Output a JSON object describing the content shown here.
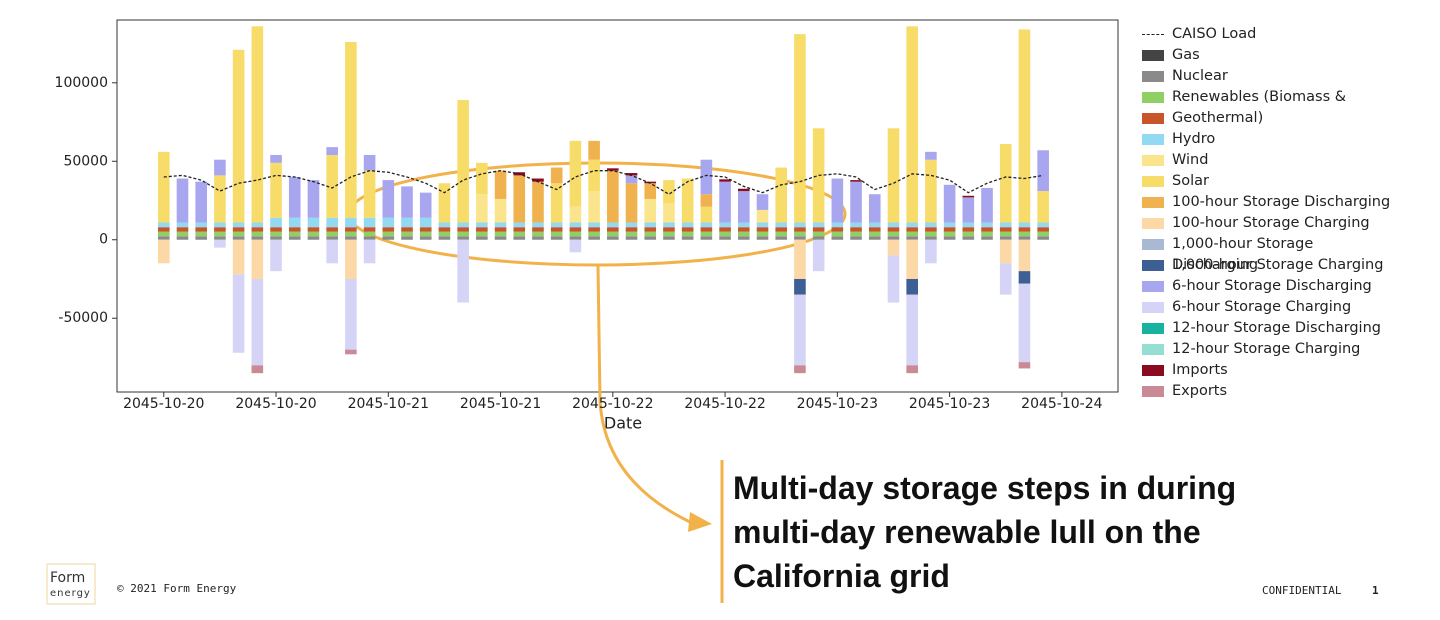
{
  "chart_data": {
    "type": "stacked-bar",
    "x_label": "Date",
    "legend": "right",
    "xlim": [
      -5,
      102
    ],
    "ylim": [
      -97000,
      140000
    ],
    "xticks": [
      {
        "value": 0,
        "label": "2045-10-20"
      },
      {
        "value": 12,
        "label": "2045-10-20"
      },
      {
        "value": 24,
        "label": "2045-10-21"
      },
      {
        "value": 36,
        "label": "2045-10-21"
      },
      {
        "value": 48,
        "label": "2045-10-22"
      },
      {
        "value": 60,
        "label": "2045-10-22"
      },
      {
        "value": 72,
        "label": "2045-10-23"
      },
      {
        "value": 84,
        "label": "2045-10-23"
      },
      {
        "value": 96,
        "label": "2045-10-24"
      }
    ],
    "yticks": [
      -50000,
      0,
      50000,
      100000
    ],
    "x": [
      0,
      2,
      4,
      6,
      8,
      10,
      12,
      14,
      16,
      18,
      20,
      22,
      24,
      26,
      28,
      30,
      32,
      34,
      36,
      38,
      40,
      42,
      44,
      46,
      48,
      50,
      52,
      54,
      56,
      58,
      60,
      62,
      64,
      66,
      68,
      70,
      72,
      74,
      76,
      78,
      80,
      82,
      84,
      86,
      88,
      90,
      92,
      94
    ],
    "load": {
      "name": "CAISO Load",
      "color": "#222222",
      "values": [
        40000,
        41000,
        38000,
        31000,
        36000,
        38000,
        41000,
        40000,
        37000,
        33000,
        40000,
        44000,
        43000,
        40000,
        36000,
        30000,
        38000,
        42000,
        44000,
        42000,
        37000,
        32000,
        40000,
        44000,
        44000,
        41000,
        36000,
        29000,
        37000,
        41000,
        40000,
        34000,
        30000,
        35000,
        37000,
        41000,
        42000,
        40000,
        32000,
        36000,
        42000,
        41000,
        38000,
        30000,
        36000,
        40000,
        39000,
        41000
      ]
    },
    "series": [
      {
        "name": "Gas",
        "color": "#444444",
        "values": [
          0,
          0,
          0,
          0,
          0,
          0,
          0,
          0,
          0,
          0,
          0,
          0,
          0,
          0,
          0,
          0,
          0,
          0,
          0,
          0,
          0,
          0,
          0,
          0,
          0,
          0,
          0,
          0,
          0,
          0,
          0,
          0,
          0,
          0,
          0,
          0,
          0,
          0,
          0,
          0,
          0,
          0,
          0,
          0,
          0,
          0,
          0,
          0
        ]
      },
      {
        "name": "Nuclear",
        "color": "#8a8a8a",
        "values": [
          2200,
          2200,
          2200,
          2200,
          2200,
          2200,
          2200,
          2200,
          2200,
          2200,
          2200,
          2200,
          2200,
          2200,
          2200,
          2200,
          2200,
          2200,
          2200,
          2200,
          2200,
          2200,
          2200,
          2200,
          2200,
          2200,
          2200,
          2200,
          2200,
          2200,
          2200,
          2200,
          2200,
          2200,
          2200,
          2200,
          2200,
          2200,
          2200,
          2200,
          2200,
          2200,
          2200,
          2200,
          2200,
          2200,
          2200,
          2200
        ]
      },
      {
        "name": "Renewables (Biomass & Geothermal)",
        "color": "#8fcf63",
        "values": [
          3000,
          3000,
          3000,
          3000,
          3000,
          3000,
          3000,
          3000,
          3000,
          3000,
          3000,
          3000,
          3000,
          3000,
          3000,
          3000,
          3000,
          3000,
          3000,
          3000,
          3000,
          3000,
          3000,
          3000,
          3000,
          3000,
          3000,
          3000,
          3000,
          3000,
          3000,
          3000,
          3000,
          3000,
          3000,
          3000,
          3000,
          3000,
          3000,
          3000,
          3000,
          3000,
          3000,
          3000,
          3000,
          3000,
          3000,
          3000
        ]
      },
      {
        "name": null,
        "color": "#c8552b",
        "values": [
          2800,
          2800,
          2800,
          2800,
          2800,
          2800,
          2800,
          2800,
          2800,
          2800,
          2800,
          2800,
          2800,
          2800,
          2800,
          2800,
          2800,
          2800,
          2800,
          2800,
          2800,
          2800,
          2800,
          2800,
          2800,
          2800,
          2800,
          2800,
          2800,
          2800,
          2800,
          2800,
          2800,
          2800,
          2800,
          2800,
          2800,
          2800,
          2800,
          2800,
          2800,
          2800,
          2800,
          2800,
          2800,
          2800,
          2800,
          2800
        ]
      },
      {
        "name": "Hydro",
        "color": "#93d9f2",
        "values": [
          3000,
          3000,
          3000,
          3000,
          3000,
          3000,
          6000,
          6000,
          6000,
          6000,
          6000,
          6000,
          6000,
          6000,
          6000,
          3000,
          3000,
          3000,
          3000,
          3000,
          3000,
          3000,
          3000,
          3000,
          3000,
          3000,
          3000,
          3000,
          3000,
          3000,
          3000,
          3000,
          3000,
          3000,
          3000,
          3000,
          3000,
          3000,
          3000,
          3000,
          3000,
          3000,
          3000,
          3000,
          3000,
          3000,
          3000,
          3000
        ]
      },
      {
        "name": "Wind",
        "color": "#fbe58c",
        "values": [
          0,
          0,
          0,
          0,
          0,
          0,
          0,
          0,
          0,
          0,
          0,
          0,
          0,
          0,
          0,
          0,
          0,
          18000,
          15000,
          0,
          0,
          0,
          10000,
          20000,
          0,
          0,
          15000,
          12000,
          0,
          0,
          0,
          0,
          8000,
          0,
          0,
          0,
          0,
          0,
          0,
          0,
          0,
          0,
          0,
          0,
          0,
          0,
          0,
          0
        ]
      },
      {
        "name": "Solar",
        "color": "#f8dc6a",
        "values": [
          45000,
          0,
          0,
          30000,
          110000,
          125000,
          35000,
          0,
          0,
          40000,
          112000,
          30000,
          0,
          0,
          0,
          25000,
          78000,
          20000,
          0,
          0,
          0,
          25000,
          42000,
          20000,
          0,
          0,
          0,
          15000,
          28000,
          10000,
          0,
          0,
          0,
          35000,
          120000,
          60000,
          0,
          0,
          0,
          60000,
          125000,
          40000,
          0,
          0,
          0,
          50000,
          123000,
          20000
        ]
      },
      {
        "name": "100-hour Storage Discharging",
        "color": "#f0b24e",
        "values": [
          0,
          0,
          0,
          0,
          0,
          0,
          0,
          0,
          0,
          0,
          0,
          0,
          0,
          0,
          0,
          0,
          0,
          0,
          18000,
          30000,
          26000,
          10000,
          0,
          12000,
          33000,
          25000,
          10000,
          0,
          0,
          8000,
          0,
          0,
          0,
          0,
          0,
          0,
          0,
          0,
          0,
          0,
          0,
          0,
          0,
          0,
          0,
          0,
          0,
          0
        ]
      },
      {
        "name": "100-hour Storage Charging",
        "color": "#fcd8a6",
        "values": [
          -15000,
          0,
          0,
          0,
          -22000,
          -25000,
          0,
          0,
          0,
          0,
          -25000,
          0,
          0,
          0,
          0,
          0,
          0,
          0,
          0,
          0,
          0,
          0,
          0,
          0,
          0,
          0,
          0,
          0,
          0,
          0,
          0,
          0,
          0,
          0,
          -25000,
          0,
          0,
          0,
          0,
          -10000,
          -25000,
          0,
          0,
          0,
          0,
          -15000,
          -20000,
          0
        ]
      },
      {
        "name": "1,000-hour Storage Discharging",
        "color": "#a9b9d3",
        "values": [
          0,
          0,
          0,
          0,
          0,
          0,
          0,
          0,
          0,
          0,
          0,
          0,
          0,
          0,
          0,
          0,
          0,
          0,
          0,
          0,
          0,
          0,
          0,
          0,
          0,
          0,
          0,
          0,
          0,
          0,
          0,
          0,
          0,
          0,
          0,
          0,
          0,
          0,
          0,
          0,
          0,
          0,
          0,
          0,
          0,
          0,
          0,
          0
        ]
      },
      {
        "name": "1,000-hour Storage Charging",
        "color": "#3e5f94",
        "values": [
          0,
          0,
          0,
          0,
          0,
          0,
          0,
          0,
          0,
          0,
          0,
          0,
          0,
          0,
          0,
          0,
          0,
          0,
          0,
          0,
          0,
          0,
          0,
          0,
          0,
          0,
          0,
          0,
          0,
          0,
          0,
          0,
          0,
          0,
          -10000,
          0,
          0,
          0,
          0,
          0,
          -10000,
          0,
          0,
          0,
          0,
          0,
          -8000,
          0
        ]
      },
      {
        "name": "6-hour Storage Discharging",
        "color": "#a8a6ee",
        "values": [
          0,
          28000,
          26000,
          10000,
          0,
          0,
          5000,
          26000,
          24000,
          5000,
          0,
          10000,
          24000,
          20000,
          16000,
          0,
          0,
          0,
          0,
          0,
          0,
          0,
          0,
          0,
          0,
          5000,
          0,
          0,
          0,
          22000,
          26000,
          20000,
          10000,
          0,
          0,
          0,
          28000,
          26000,
          18000,
          0,
          0,
          5000,
          24000,
          16000,
          22000,
          0,
          0,
          26000
        ]
      },
      {
        "name": "6-hour Storage Charging",
        "color": "#d5d4f7",
        "values": [
          0,
          0,
          0,
          -5000,
          -50000,
          -55000,
          -20000,
          0,
          0,
          -15000,
          -45000,
          -15000,
          0,
          0,
          0,
          0,
          -40000,
          0,
          0,
          0,
          0,
          0,
          -8000,
          0,
          0,
          0,
          0,
          0,
          0,
          0,
          0,
          0,
          0,
          0,
          -45000,
          -20000,
          0,
          0,
          0,
          -30000,
          -45000,
          -15000,
          0,
          0,
          0,
          -20000,
          -50000,
          0
        ]
      },
      {
        "name": "12-hour Storage Discharging",
        "color": "#17b3a0",
        "values": [
          0,
          0,
          0,
          0,
          0,
          0,
          0,
          0,
          0,
          0,
          0,
          0,
          0,
          0,
          0,
          0,
          0,
          0,
          0,
          0,
          0,
          0,
          0,
          0,
          0,
          0,
          0,
          0,
          0,
          0,
          0,
          0,
          0,
          0,
          0,
          0,
          0,
          0,
          0,
          0,
          0,
          0,
          0,
          0,
          0,
          0,
          0,
          0
        ]
      },
      {
        "name": "12-hour Storage Charging",
        "color": "#94dfd1",
        "values": [
          0,
          0,
          0,
          0,
          0,
          0,
          0,
          0,
          0,
          0,
          0,
          0,
          0,
          0,
          0,
          0,
          0,
          0,
          0,
          0,
          0,
          0,
          0,
          0,
          0,
          0,
          0,
          0,
          0,
          0,
          0,
          0,
          0,
          0,
          0,
          0,
          0,
          0,
          0,
          0,
          0,
          0,
          0,
          0,
          0,
          0,
          0,
          0
        ]
      },
      {
        "name": "Imports",
        "color": "#8b0a1f",
        "values": [
          0,
          0,
          0,
          0,
          0,
          0,
          0,
          0,
          0,
          0,
          0,
          0,
          0,
          0,
          0,
          0,
          0,
          0,
          0,
          2000,
          2000,
          0,
          0,
          0,
          1500,
          1500,
          1000,
          0,
          0,
          0,
          1500,
          1500,
          0,
          0,
          0,
          0,
          0,
          1000,
          0,
          0,
          0,
          0,
          0,
          1000,
          0,
          0,
          0,
          0
        ]
      },
      {
        "name": "Exports",
        "color": "#c98a95",
        "values": [
          0,
          0,
          0,
          0,
          0,
          -5000,
          0,
          0,
          0,
          0,
          -3000,
          0,
          0,
          0,
          0,
          0,
          0,
          0,
          0,
          0,
          0,
          0,
          0,
          0,
          0,
          0,
          0,
          0,
          0,
          0,
          0,
          0,
          0,
          0,
          -5000,
          0,
          0,
          0,
          0,
          0,
          -5000,
          0,
          0,
          0,
          0,
          0,
          -4000,
          0
        ]
      }
    ]
  },
  "annotation": "Multi-day storage steps in during multi-day renewable lull on the California grid",
  "logo": {
    "top": "Form",
    "bottom": "energy"
  },
  "footer": {
    "copyright": "© 2021 Form Energy",
    "confidential": "CONFIDENTIAL",
    "page": 1
  }
}
